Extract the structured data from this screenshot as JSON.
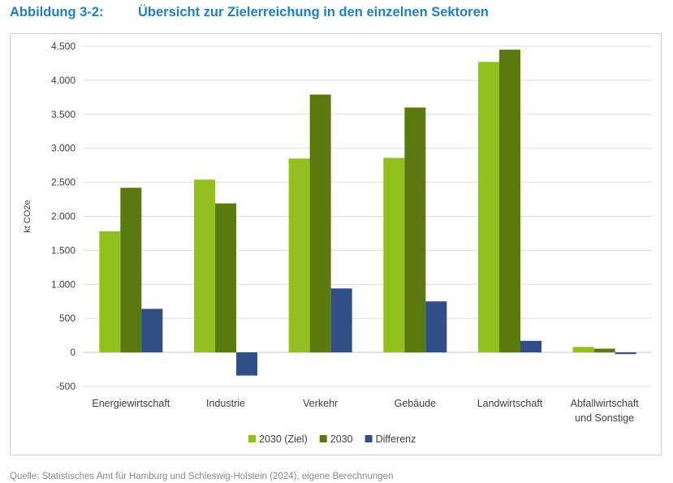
{
  "figure": {
    "number": "Abbildung 3-2:",
    "title": "Übersicht zur Zielerreichung in den einzelnen Sektoren",
    "source": "Quelle: Statistisches Amt für Hamburg und Schleswig-Holstein (2024), eigene Berechnungen"
  },
  "chart_data": {
    "type": "bar",
    "ylabel": "kt CO2e",
    "xlabel": "",
    "ylim": [
      -500,
      4500
    ],
    "yticks": [
      -500,
      0,
      500,
      1000,
      1500,
      2000,
      2500,
      3000,
      3500,
      4000,
      4500
    ],
    "ytick_labels": [
      "-500",
      "0",
      "500",
      "1.000",
      "1.500",
      "2.000",
      "2.500",
      "3.000",
      "3.500",
      "4.000",
      "4.500"
    ],
    "grid": true,
    "legend_position": "bottom",
    "categories": [
      "Energiewirtschaft",
      "Industrie",
      "Verkehr",
      "Gebäude",
      "Landwirtschaft",
      "Abfallwirtschaft und Sonstige"
    ],
    "category_lines": [
      [
        "Energiewirtschaft"
      ],
      [
        "Industrie"
      ],
      [
        "Verkehr"
      ],
      [
        "Gebäude"
      ],
      [
        "Landwirtschaft"
      ],
      [
        "Abfallwirtschaft",
        "und Sonstige"
      ]
    ],
    "series": [
      {
        "name": "2030 (Ziel)",
        "color": "#93c01f",
        "values": [
          1780,
          2540,
          2850,
          2860,
          4270,
          80
        ]
      },
      {
        "name": "2030",
        "color": "#5a7a10",
        "values": [
          2420,
          2190,
          3790,
          3600,
          4450,
          55
        ]
      },
      {
        "name": "Differenz",
        "color": "#2f4f86",
        "values": [
          640,
          -340,
          940,
          750,
          170,
          -25
        ]
      }
    ]
  }
}
